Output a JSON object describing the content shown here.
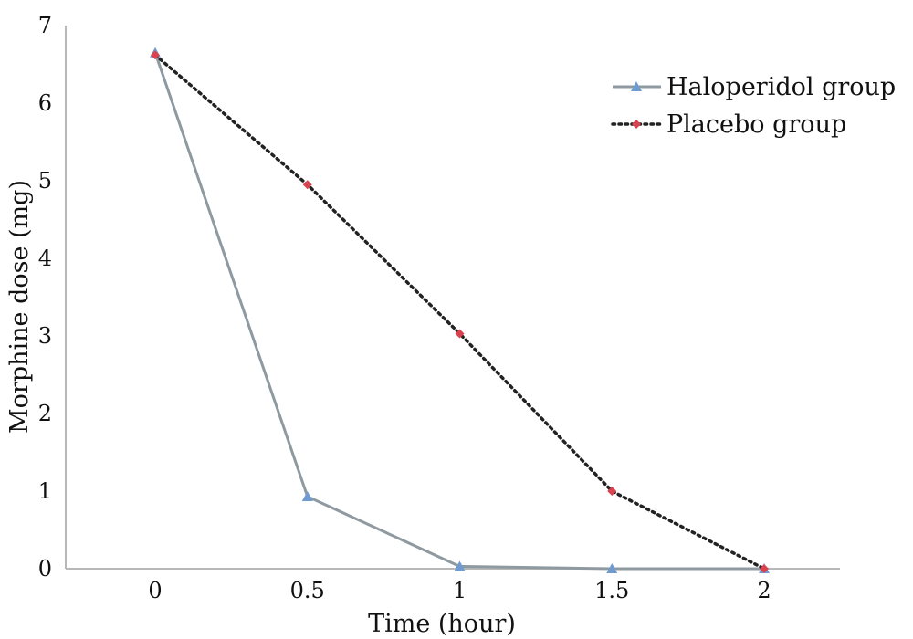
{
  "chart_data": {
    "type": "line",
    "xlabel": "Time (hour)",
    "ylabel": "Morphine dose (mg)",
    "x": [
      "0",
      "0.5",
      "1",
      "1.5",
      "2"
    ],
    "ylim": [
      0,
      7
    ],
    "yticks": [
      0,
      1,
      2,
      3,
      4,
      5,
      6,
      7
    ],
    "grid": false,
    "legend_position": "top-right",
    "series": [
      {
        "name": "Haloperidol group",
        "values": [
          6.65,
          0.93,
          0.03,
          0.0,
          0.0
        ],
        "color": "#8e9aa0",
        "marker": "triangle",
        "marker_color": "#6f9bd1",
        "line_style": "solid"
      },
      {
        "name": "Placebo group",
        "values": [
          6.62,
          4.95,
          3.03,
          1.0,
          0.0
        ],
        "color": "#222222",
        "marker": "diamond",
        "marker_color": "#d9434f",
        "line_style": "dotted"
      }
    ]
  }
}
